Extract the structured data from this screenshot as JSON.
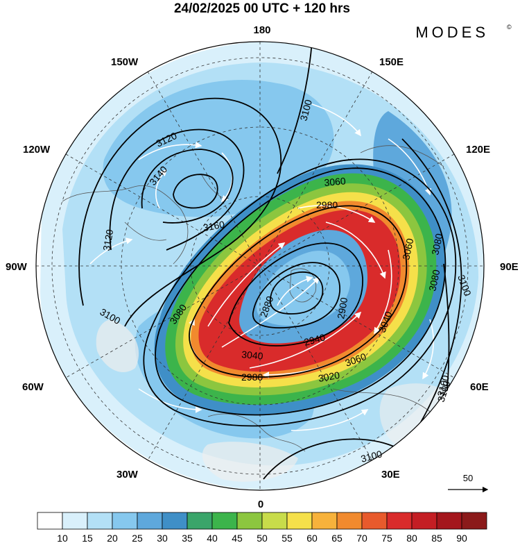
{
  "header": {
    "title": "24/02/2025  00 UTC  + 120 hrs",
    "brand": "MODES",
    "brand_mark": "©"
  },
  "map": {
    "projection": "north-polar-stereographic",
    "longitude_labels": {
      "top": "180",
      "bottom": "0",
      "left": "90W",
      "right": "90E",
      "upper_left_1": "150W",
      "upper_left_2": "120W",
      "upper_right_1": "150E",
      "upper_right_2": "120E",
      "lower_left_1": "60W",
      "lower_left_2": "30W",
      "lower_right_1": "60E",
      "lower_right_2": "30E"
    },
    "contour_labels": [
      "3100",
      "3120",
      "3140",
      "3160",
      "3120",
      "3100",
      "3060",
      "2980",
      "3060",
      "3080",
      "3100",
      "3080",
      "2880",
      "2900",
      "3040",
      "3040",
      "2940",
      "2980",
      "3020",
      "3060",
      "3100",
      "3080",
      "3100",
      "3100"
    ],
    "colors": {
      "wind_10": "#ffffff",
      "wind_15": "#d9f0fb",
      "wind_20": "#b3e0f6",
      "wind_25": "#86c8ee",
      "wind_30": "#5ea8dc",
      "wind_35": "#3f8fc7",
      "wind_40": "#3aa56a",
      "wind_45": "#3cb44b",
      "wind_50": "#8cc63f",
      "wind_55": "#c8dc4a",
      "wind_60": "#f5e04a",
      "wind_65": "#f7b23b",
      "wind_70": "#f18a2e",
      "wind_75": "#e85a2c",
      "wind_80": "#d92b2b",
      "wind_85": "#c41e24",
      "wind_90": "#a4161c"
    }
  },
  "vector_key": {
    "label": "50"
  },
  "colorbar": {
    "labels": [
      "10",
      "15",
      "20",
      "25",
      "30",
      "35",
      "40",
      "45",
      "50",
      "55",
      "60",
      "65",
      "70",
      "75",
      "80",
      "85",
      "90"
    ],
    "colors": [
      "#ffffff",
      "#d9f0fb",
      "#b3e0f6",
      "#86c8ee",
      "#5ea8dc",
      "#3f8fc7",
      "#3aa56a",
      "#3cb44b",
      "#8cc63f",
      "#c8dc4a",
      "#f5e04a",
      "#f7b23b",
      "#f18a2e",
      "#e85a2c",
      "#d92b2b",
      "#c41e24",
      "#a4161c",
      "#8b1a1a"
    ]
  }
}
